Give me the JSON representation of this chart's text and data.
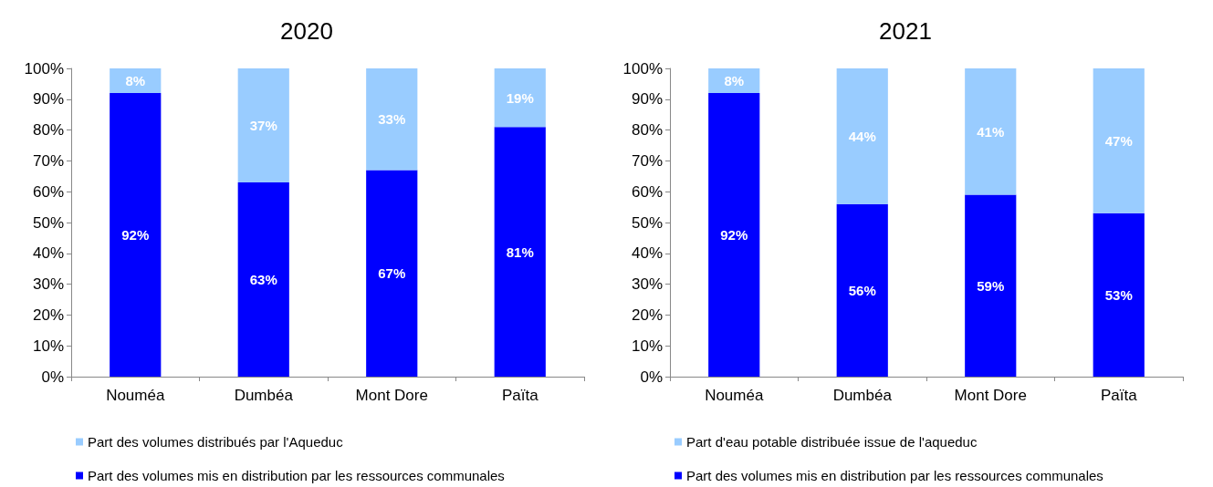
{
  "chart_data": [
    {
      "type": "bar",
      "title": "2020",
      "categories": [
        "Nouméa",
        "Dumbéa",
        "Mont Dore",
        "Païta"
      ],
      "stacked": true,
      "legend": "bottom",
      "ylim": [
        0,
        100
      ],
      "yticks": [
        {
          "value": 0,
          "label": "0%"
        },
        {
          "value": 10,
          "label": "10%"
        },
        {
          "value": 20,
          "label": "20%"
        },
        {
          "value": 30,
          "label": "30%"
        },
        {
          "value": 40,
          "label": "40%"
        },
        {
          "value": 50,
          "label": "50%"
        },
        {
          "value": 60,
          "label": "60%"
        },
        {
          "value": 70,
          "label": "70%"
        },
        {
          "value": 80,
          "label": "80%"
        },
        {
          "value": 90,
          "label": "90%"
        },
        {
          "value": 100,
          "label": "100%"
        }
      ],
      "series": [
        {
          "name": "Part des volumes mis en distribution par les ressources communales",
          "color": "#0000ff",
          "values": [
            92,
            63,
            67,
            81
          ],
          "value_labels": [
            "92%",
            "63%",
            "67%",
            "81%"
          ]
        },
        {
          "name": "Part des volumes distribués par l'Aqueduc",
          "color": "#99ccff",
          "values": [
            8,
            37,
            33,
            19
          ],
          "value_labels": [
            "8%",
            "37%",
            "33%",
            "19%"
          ]
        }
      ]
    },
    {
      "type": "bar",
      "title": "2021",
      "categories": [
        "Nouméa",
        "Dumbéa",
        "Mont Dore",
        "Païta"
      ],
      "stacked": true,
      "legend": "bottom",
      "ylim": [
        0,
        100
      ],
      "yticks": [
        {
          "value": 0,
          "label": "0%"
        },
        {
          "value": 10,
          "label": "10%"
        },
        {
          "value": 20,
          "label": "20%"
        },
        {
          "value": 30,
          "label": "30%"
        },
        {
          "value": 40,
          "label": "40%"
        },
        {
          "value": 50,
          "label": "50%"
        },
        {
          "value": 60,
          "label": "60%"
        },
        {
          "value": 70,
          "label": "70%"
        },
        {
          "value": 80,
          "label": "80%"
        },
        {
          "value": 90,
          "label": "90%"
        },
        {
          "value": 100,
          "label": "100%"
        }
      ],
      "series": [
        {
          "name": "Part des volumes mis en distribution par les ressources communales",
          "color": "#0000ff",
          "values": [
            92,
            56,
            59,
            53
          ],
          "value_labels": [
            "92%",
            "56%",
            "59%",
            "53%"
          ]
        },
        {
          "name": "Part d'eau potable distribuée issue de l'aqueduc",
          "color": "#99ccff",
          "values": [
            8,
            44,
            41,
            47
          ],
          "value_labels": [
            "8%",
            "44%",
            "41%",
            "47%"
          ]
        }
      ]
    }
  ]
}
